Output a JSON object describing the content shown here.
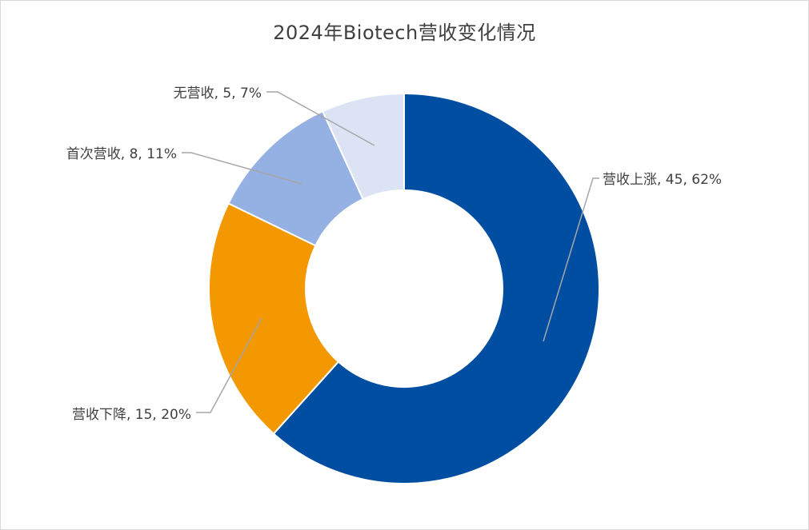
{
  "chart_data": {
    "type": "pie",
    "variant": "donut",
    "title": "2024年Biotech营收变化情况",
    "slices": [
      {
        "label": "营收上涨",
        "value": 45,
        "percent": "62%",
        "color": "#004ea2"
      },
      {
        "label": "营收下降",
        "value": 15,
        "percent": "20%",
        "color": "#f39800"
      },
      {
        "label": "首次营收",
        "value": 8,
        "percent": "11%",
        "color": "#95b0e2"
      },
      {
        "label": "无营收",
        "value": 5,
        "percent": "7%",
        "color": "#dbe3f4"
      }
    ],
    "data_labels": [
      "营收上涨, 45, 62%",
      "营收下降, 15, 20%",
      "首次营收, 8, 11%",
      "无营收, 5, 7%"
    ],
    "legend": "none",
    "label_position": "outside-with-leader-lines"
  }
}
